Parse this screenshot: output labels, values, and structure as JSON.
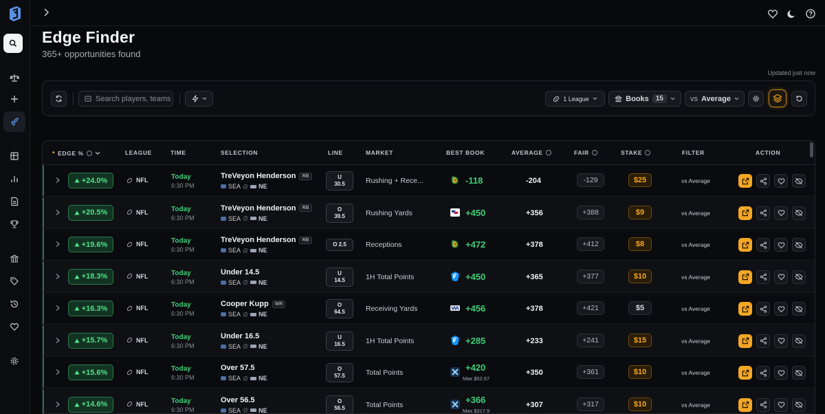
{
  "header": {
    "title": "Edge Finder",
    "subtitle": "365+ opportunities found",
    "updated": "Updated just now"
  },
  "toolbar": {
    "search_placeholder": "Search players, teams",
    "league_filter": "1 League",
    "books_label": "Books",
    "books_count": "15",
    "compare_label": "vs",
    "compare_value": "Average"
  },
  "table": {
    "columns": {
      "edge": "EDGE %",
      "league": "LEAGUE",
      "time": "TIME",
      "selection": "SELECTION",
      "line": "LINE",
      "market": "MARKET",
      "best_book": "BEST BOOK",
      "average": "AVERAGE",
      "fair": "FAIR",
      "stake": "STAKE",
      "filter": "FILTER",
      "action": "ACTION"
    },
    "rows": [
      {
        "edge": "+24.0%",
        "league": "NFL",
        "day": "Today",
        "time": "6:30 PM",
        "selection": "TreVeyon Henderson",
        "pos": "RB",
        "away": "SEA",
        "at": "@",
        "home": "NE",
        "line_a": "U",
        "line_b": "30.5",
        "market": "Rushing + Rece...",
        "book": "dk",
        "odds": "-118",
        "max": "",
        "average": "-204",
        "fair": "-129",
        "stake": "$25",
        "stake_hl": true,
        "filter": "vs Average"
      },
      {
        "edge": "+20.5%",
        "league": "NFL",
        "day": "Today",
        "time": "6:30 PM",
        "selection": "TreVeyon Henderson",
        "pos": "RB",
        "away": "SEA",
        "at": "@",
        "home": "NE",
        "line_a": "O",
        "line_b": "39.5",
        "market": "Rushing Yards",
        "book": "fanatics",
        "odds": "+450",
        "max": "",
        "average": "+356",
        "fair": "+388",
        "stake": "$9",
        "stake_hl": true,
        "filter": "vs Average"
      },
      {
        "edge": "+19.6%",
        "league": "NFL",
        "day": "Today",
        "time": "6:30 PM",
        "selection": "TreVeyon Henderson",
        "pos": "RB",
        "away": "SEA",
        "at": "@",
        "home": "NE",
        "line_a": "O 2.5",
        "line_b": "",
        "market": "Receptions",
        "book": "dk",
        "odds": "+472",
        "max": "",
        "average": "+378",
        "fair": "+412",
        "stake": "$8",
        "stake_hl": true,
        "filter": "vs Average"
      },
      {
        "edge": "+18.3%",
        "league": "NFL",
        "day": "Today",
        "time": "6:30 PM",
        "selection": "Under 14.5",
        "pos": "",
        "away": "SEA",
        "at": "@",
        "home": "NE",
        "line_a": "U",
        "line_b": "14.5",
        "market": "1H Total Points",
        "book": "fd",
        "odds": "+450",
        "max": "",
        "average": "+365",
        "fair": "+377",
        "stake": "$10",
        "stake_hl": true,
        "filter": "vs Average"
      },
      {
        "edge": "+16.3%",
        "league": "NFL",
        "day": "Today",
        "time": "6:30 PM",
        "selection": "Cooper Kupp",
        "pos": "WR",
        "away": "SEA",
        "at": "@",
        "home": "NE",
        "line_a": "O",
        "line_b": "64.5",
        "market": "Receiving Yards",
        "book": "other",
        "odds": "+456",
        "max": "",
        "average": "+378",
        "fair": "+421",
        "stake": "$5",
        "stake_hl": false,
        "filter": "vs Average"
      },
      {
        "edge": "+15.7%",
        "league": "NFL",
        "day": "Today",
        "time": "6:30 PM",
        "selection": "Under 16.5",
        "pos": "",
        "away": "SEA",
        "at": "@",
        "home": "NE",
        "line_a": "U",
        "line_b": "16.5",
        "market": "1H Total Points",
        "book": "fd",
        "odds": "+285",
        "max": "",
        "average": "+233",
        "fair": "+241",
        "stake": "$15",
        "stake_hl": true,
        "filter": "vs Average"
      },
      {
        "edge": "+15.6%",
        "league": "NFL",
        "day": "Today",
        "time": "6:30 PM",
        "selection": "Over 57.5",
        "pos": "",
        "away": "SEA",
        "at": "@",
        "home": "NE",
        "line_a": "O",
        "line_b": "57.5",
        "market": "Total Points",
        "book": "x",
        "odds": "+420",
        "max": "Max $52.67",
        "average": "+350",
        "fair": "+361",
        "stake": "$10",
        "stake_hl": true,
        "filter": "vs Average"
      },
      {
        "edge": "+14.6%",
        "league": "NFL",
        "day": "Today",
        "time": "6:30 PM",
        "selection": "Over 56.5",
        "pos": "",
        "away": "SEA",
        "at": "@",
        "home": "NE",
        "line_a": "O",
        "line_b": "56.5",
        "market": "Total Points",
        "book": "x",
        "odds": "+366",
        "max": "Max $317.9",
        "average": "+307",
        "fair": "+317",
        "stake": "$10",
        "stake_hl": true,
        "filter": "vs Average"
      }
    ]
  },
  "colors": {
    "accent": "#f5a623",
    "positive": "#3ecf78",
    "background": "#08090b"
  }
}
